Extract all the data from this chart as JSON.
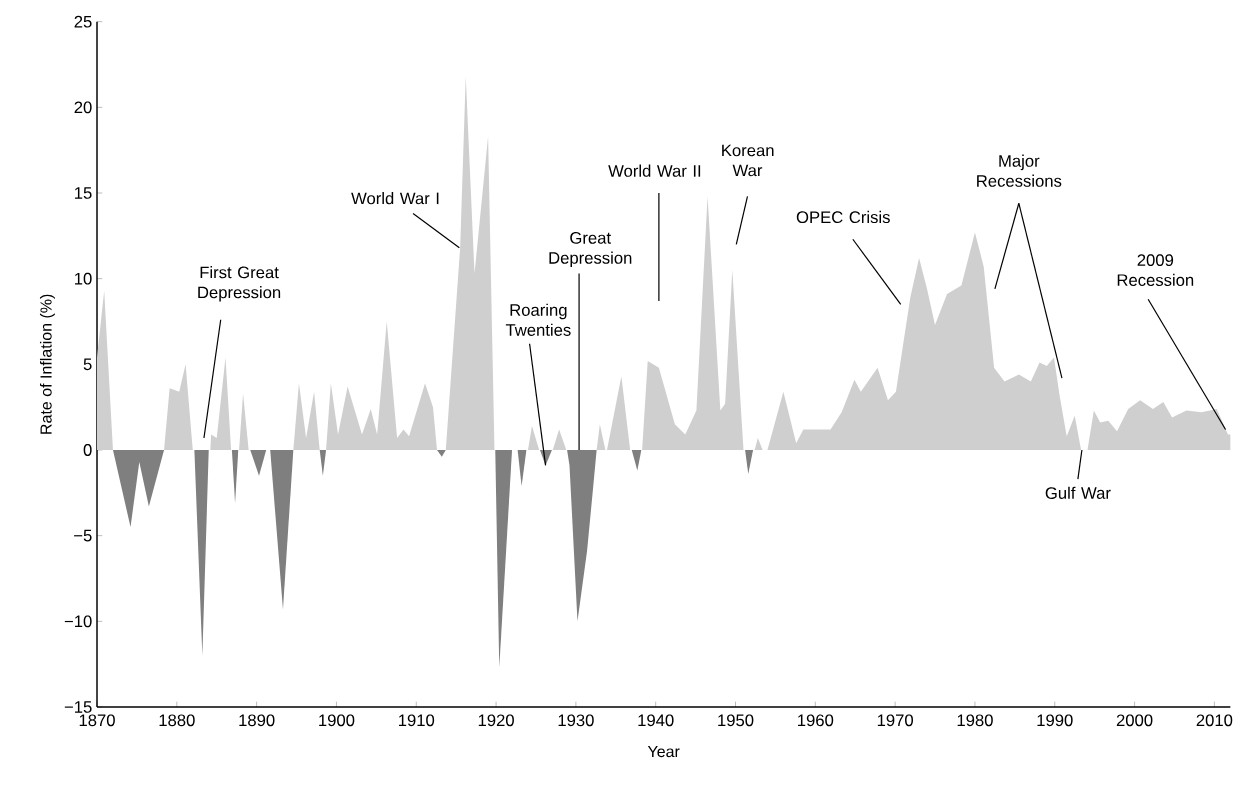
{
  "chart_data": {
    "type": "area",
    "xlabel": "Year",
    "ylabel": "Rate of Inflation (%)",
    "xlim": [
      1870,
      2012
    ],
    "ylim": [
      -15,
      25
    ],
    "xticks": [
      1870,
      1880,
      1890,
      1900,
      1910,
      1920,
      1930,
      1940,
      1950,
      1960,
      1970,
      1980,
      1990,
      2000,
      2010
    ],
    "yticks": [
      {
        "value": -15,
        "label": "−15"
      },
      {
        "value": -10,
        "label": "−10"
      },
      {
        "value": -5,
        "label": "−5"
      },
      0,
      5,
      10,
      15,
      20,
      25
    ],
    "grid": false,
    "series": [
      {
        "color": "#cfcfcf",
        "x": [
          1870.0,
          1870.9,
          1872.0,
          null,
          1878.4,
          1879.1,
          1880.3,
          1881.1,
          1882.0,
          null,
          1884.2,
          1884.3,
          1885.0,
          1886.1,
          1886.8,
          null,
          1887.8,
          1888.3,
          1889.0,
          null,
          1894.6,
          1895.3,
          1896.2,
          1897.2,
          1897.9,
          null,
          1898.7,
          1899.3,
          1900.2,
          1901.4,
          1903.2,
          1904.3,
          1905.1,
          1906.3,
          1907.6,
          1908.4,
          1909.1,
          1911.1,
          1912.1,
          1912.6,
          null,
          1913.7,
          1915.5,
          1916.2,
          1917.3,
          1919.0,
          1919.8,
          null,
          1924.0,
          1924.5,
          1925.4,
          null,
          1927.1,
          1927.9,
          1928.8,
          null,
          1932.6,
          1933.0,
          1933.7,
          null,
          1933.9,
          1935.7,
          1936.8,
          null,
          1938.3,
          1939.0,
          1940.4,
          1942.4,
          1943.7,
          1945.1,
          1946.5,
          1948.1,
          1948.7,
          1949.6,
          1951.0,
          null,
          1952.4,
          1952.8,
          1953.4,
          null,
          1954.0,
          1956.0,
          1957.6,
          1958.5,
          1960.4,
          1961.9,
          1963.3,
          1964.9,
          1965.7,
          1967.8,
          1969.1,
          1970.1,
          1971.9,
          1973.0,
          1974.0,
          1975.0,
          1976.5,
          1978.3,
          1980.0,
          1981.1,
          1982.4,
          1983.7,
          1985.5,
          1987.0,
          1988.1,
          1989.0,
          1989.9,
          1990.6,
          1991.5,
          1992.5,
          1993.3,
          null,
          1994.1,
          1994.9,
          1995.7,
          1996.7,
          1997.8,
          1999.2,
          2000.7,
          2002.3,
          2003.6,
          2004.7,
          2006.5,
          2008.4,
          2010.3,
          2011.7,
          2012.0
        ],
        "values": [
          5.4,
          9.3,
          0,
          null,
          0,
          3.6,
          3.4,
          5.0,
          0,
          null,
          0,
          0.9,
          0.7,
          5.4,
          0,
          null,
          0,
          3.3,
          0,
          null,
          0,
          3.9,
          0.7,
          3.4,
          0,
          null,
          0,
          3.9,
          0.9,
          3.7,
          0.9,
          2.4,
          0.9,
          7.5,
          0.7,
          1.2,
          0.8,
          3.9,
          2.5,
          0,
          null,
          0,
          11.8,
          21.8,
          10.3,
          18.3,
          0,
          null,
          0,
          1.4,
          0,
          null,
          0,
          1.2,
          0,
          null,
          0,
          1.5,
          0,
          null,
          0,
          4.3,
          0,
          null,
          0,
          5.2,
          4.8,
          1.5,
          0.9,
          2.3,
          14.8,
          2.3,
          2.7,
          10.5,
          0,
          null,
          0,
          0.7,
          0,
          null,
          0,
          3.4,
          0.4,
          1.2,
          1.2,
          1.2,
          2.2,
          4.1,
          3.4,
          4.8,
          2.9,
          3.4,
          8.9,
          11.2,
          9.4,
          7.3,
          9.1,
          9.6,
          12.7,
          10.7,
          4.8,
          4.0,
          4.4,
          4.0,
          5.1,
          4.9,
          5.4,
          3.2,
          0.8,
          2.0,
          0,
          null,
          0,
          2.3,
          1.6,
          1.7,
          1.1,
          2.4,
          2.9,
          2.4,
          2.8,
          1.9,
          2.3,
          2.2,
          2.4,
          0.9,
          0.9
        ]
      },
      {
        "color": "#7f7f7f",
        "x": [
          1872.0,
          1874.2,
          1875.3,
          1876.5,
          1878.4,
          null,
          1882.2,
          1883.2,
          1884.0,
          null,
          1886.9,
          1887.3,
          1887.7,
          null,
          1889.2,
          1890.3,
          1891.2,
          null,
          1891.7,
          1893.3,
          1894.6,
          null,
          1897.9,
          1898.3,
          1898.7,
          null,
          1912.6,
          1913.2,
          1913.7,
          null,
          1919.9,
          1920.4,
          1922.0,
          null,
          1922.7,
          1923.2,
          1923.8,
          null,
          1925.5,
          1926.2,
          1927.0,
          null,
          1928.9,
          1929.2,
          1930.2,
          1931.4,
          1932.2,
          1932.6,
          null,
          1937.0,
          1937.7,
          1938.2,
          null,
          1951.2,
          1951.6,
          1952.2
        ],
        "values": [
          0,
          -4.5,
          -0.7,
          -3.3,
          0,
          null,
          0,
          -12.0,
          0,
          null,
          0,
          -3.1,
          0,
          null,
          0,
          -1.5,
          0,
          null,
          0,
          -9.3,
          0,
          null,
          0,
          -1.5,
          0,
          null,
          0,
          -0.4,
          0,
          null,
          0,
          -12.7,
          0,
          null,
          0,
          -2.1,
          0,
          null,
          0,
          -0.9,
          0,
          null,
          0,
          -0.9,
          -10.0,
          -5.9,
          -2.0,
          0,
          null,
          0,
          -1.2,
          0,
          null,
          0,
          -1.4,
          0
        ]
      }
    ],
    "annotations": [
      "First Great Depression",
      {
        "text": "World War I",
        "x": 1915.4,
        "y": 11.8
      },
      {
        "text": "Roaring Twenties",
        "x": 1926.2,
        "y": -0.9
      },
      {
        "text": "Great Depression",
        "x": 1930.4,
        "y": 0
      },
      "World War II",
      "Korean War",
      "OPEC Crisis",
      "Major Recessions",
      {
        "text": "2009 Recession",
        "x": 2011.4,
        "y": 1.2
      },
      {
        "text": "Gulf War",
        "x": 1993.4,
        "y": 0
      }
    ]
  }
}
